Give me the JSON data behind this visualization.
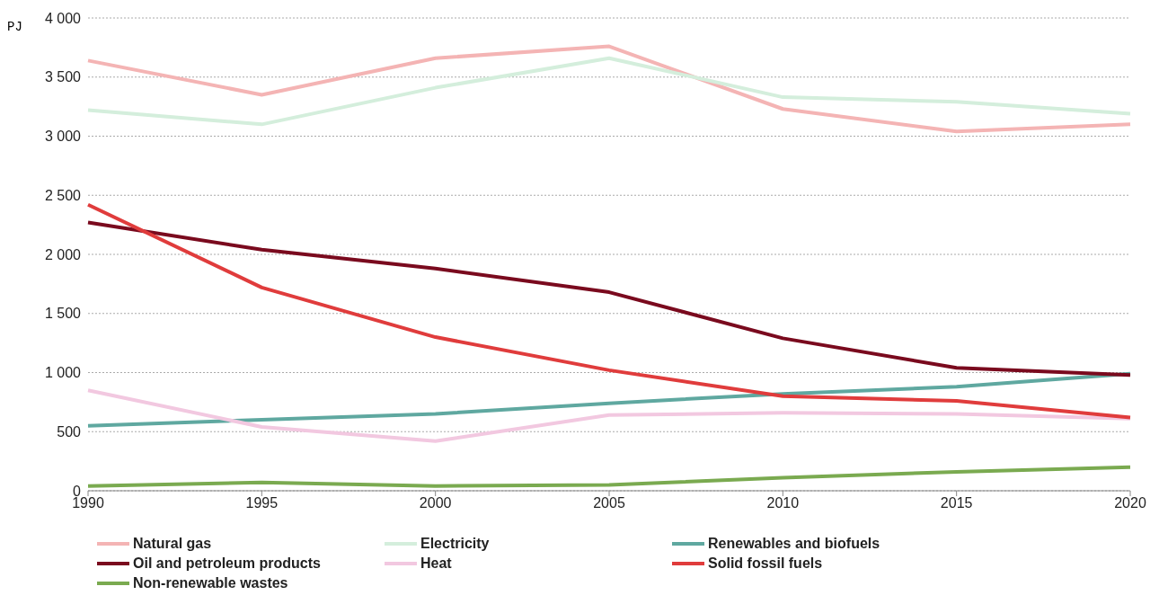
{
  "chart_data": {
    "type": "line",
    "ylabel": "PJ",
    "categories": [
      "1990",
      "1995",
      "2000",
      "2005",
      "2010",
      "2015",
      "2020"
    ],
    "series": [
      {
        "name": "Natural gas",
        "color": "#f4b4b4",
        "values": [
          3640,
          3350,
          3660,
          3760,
          3230,
          3040,
          3100
        ]
      },
      {
        "name": "Electricity",
        "color": "#d4eedc",
        "values": [
          3220,
          3100,
          3410,
          3660,
          3330,
          3290,
          3190
        ]
      },
      {
        "name": "Renewables and biofuels",
        "color": "#5fa8a0",
        "values": [
          550,
          600,
          650,
          740,
          820,
          880,
          990
        ]
      },
      {
        "name": "Oil and petroleum products",
        "color": "#7a0a1e",
        "values": [
          2270,
          2040,
          1880,
          1680,
          1290,
          1040,
          980
        ]
      },
      {
        "name": "Heat",
        "color": "#f2c8e0",
        "values": [
          850,
          540,
          420,
          640,
          660,
          650,
          610
        ]
      },
      {
        "name": "Solid fossil fuels",
        "color": "#e03c3c",
        "values": [
          2420,
          1720,
          1300,
          1020,
          800,
          760,
          620
        ]
      },
      {
        "name": "Non-renewable wastes",
        "color": "#7aaa50",
        "values": [
          40,
          70,
          40,
          50,
          110,
          160,
          200
        ]
      }
    ],
    "ylim": [
      0,
      4000
    ],
    "yticks": [
      {
        "value": 0,
        "label": "0"
      },
      {
        "value": 500,
        "label": "500"
      },
      {
        "value": 1000,
        "label": "1 000"
      },
      {
        "value": 1500,
        "label": "1 500"
      },
      {
        "value": 2000,
        "label": "2 000"
      },
      {
        "value": 2500,
        "label": "2 500"
      },
      {
        "value": 3000,
        "label": "3 000"
      },
      {
        "value": 3500,
        "label": "3 500"
      },
      {
        "value": 4000,
        "label": "4 000"
      }
    ],
    "grid": "y",
    "legend": "bottom",
    "marker": "none",
    "line_style": "solid"
  }
}
